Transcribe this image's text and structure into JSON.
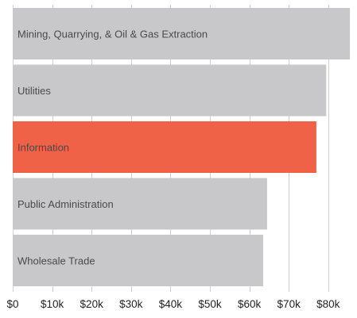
{
  "chart_data": {
    "type": "bar",
    "orientation": "horizontal",
    "title": "",
    "xlabel": "",
    "ylabel": "",
    "categories": [
      "Mining, Quarrying, & Oil & Gas Extraction",
      "Utilities",
      "Information",
      "Public Administration",
      "Wholesale Trade"
    ],
    "values": [
      85500,
      79500,
      77000,
      64500,
      63500
    ],
    "highlight_index": 2,
    "colors": {
      "bar": "#c8c8cb",
      "highlight": "#ef6248",
      "grid": "#cfcfcf",
      "bar_text": "#4a4a4a",
      "tick_text": "#222222"
    },
    "xlim": [
      0,
      86000
    ],
    "x_ticks": [
      0,
      10000,
      20000,
      30000,
      40000,
      50000,
      60000,
      70000,
      80000
    ],
    "x_tick_labels": [
      "$0",
      "$10k",
      "$20k",
      "$30k",
      "$40k",
      "$50k",
      "$60k",
      "$70k",
      "$80k"
    ],
    "grid": "vertical",
    "legend": "none"
  }
}
